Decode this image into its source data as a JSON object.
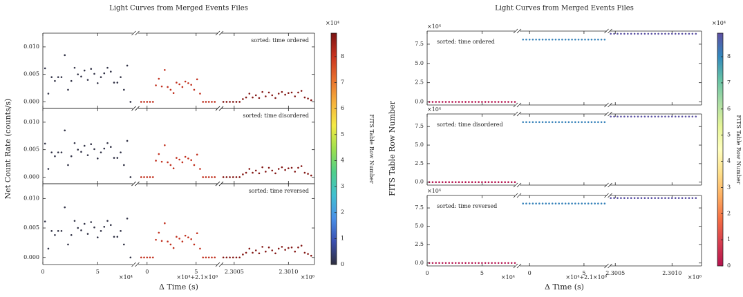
{
  "chart_data": [
    {
      "type": "scatter",
      "title": "Light Curves from Merged Events Files",
      "ylabel": "Net Count Rate (counts/s)",
      "xlabel": "Δ Time (s)",
      "panels": [
        "sorted: time ordered",
        "sorted: time disordered",
        "sorted: time reversed"
      ],
      "annotation_corner": "upper right",
      "ylim": [
        -0.0012,
        0.0125
      ],
      "yticks": [
        {
          "value": 0,
          "label": "0.000"
        },
        {
          "value": 0.005,
          "label": "0.005"
        },
        {
          "value": 0.01,
          "label": "0.010"
        }
      ],
      "segments": [
        {
          "xlim": [
            0,
            8.2
          ],
          "xticks": [
            0,
            5
          ],
          "x_offset": "×10⁴",
          "row": 0.05,
          "x": [
            0.2,
            0.5,
            0.8,
            1.1,
            1.4,
            1.7,
            2.0,
            2.3,
            2.6,
            2.9,
            3.2,
            3.5,
            3.8,
            4.1,
            4.4,
            4.7,
            5.0,
            5.3,
            5.6,
            5.9,
            6.2,
            6.5,
            6.8,
            7.1,
            7.4,
            7.7,
            8.0
          ],
          "values": [
            0.0061,
            0.0015,
            0.0045,
            0.0038,
            0.0045,
            0.0045,
            0.0085,
            0.0022,
            0.0038,
            0.0062,
            0.005,
            0.0046,
            0.0057,
            0.004,
            0.006,
            0.0051,
            0.0034,
            0.0045,
            0.0052,
            0.0062,
            0.0055,
            0.0035,
            0.0035,
            0.0045,
            0.0022,
            0.0066,
            0
          ]
        },
        {
          "xlim": [
            -0.9,
            7.2
          ],
          "xticks": [
            0,
            5
          ],
          "x_offset": "×10⁴+2.1×10⁸",
          "row": 8.1,
          "x": [
            -0.6,
            -0.3,
            0,
            0.3,
            0.6,
            0.9,
            1.2,
            1.5,
            1.8,
            2.1,
            2.4,
            2.7,
            3.0,
            3.3,
            3.6,
            3.9,
            4.2,
            4.5,
            4.8,
            5.1,
            5.4,
            5.7,
            6.0,
            6.3,
            6.6,
            6.9
          ],
          "values": [
            0,
            0,
            0,
            0,
            0,
            0.003,
            0.0042,
            0.0028,
            0.0058,
            0.0027,
            0.0022,
            0.0016,
            0.0035,
            0.0032,
            0.0027,
            0.0037,
            0.0034,
            0.0031,
            0.0022,
            0.0041,
            0.0015,
            0,
            0,
            0,
            0,
            0
          ]
        },
        {
          "xlim": [
            2.30038,
            2.30124
          ],
          "xticks": [
            2.3005,
            {
              "value": 2.301,
              "label": "2.3010"
            }
          ],
          "x_offset": "×10⁸",
          "row": 8.8,
          "x": [
            2.3004,
            2.30043,
            2.30046,
            2.30049,
            2.30052,
            2.30055,
            2.30058,
            2.30061,
            2.30064,
            2.30067,
            2.3007,
            2.30073,
            2.30076,
            2.30079,
            2.30082,
            2.30085,
            2.30088,
            2.30091,
            2.30094,
            2.30097,
            2.301,
            2.30103,
            2.30106,
            2.30109,
            2.30112,
            2.30115,
            2.30118,
            2.30121
          ],
          "values": [
            0,
            0,
            0,
            0,
            0,
            0,
            0.0005,
            0.0008,
            0.0015,
            0.0008,
            0.0012,
            0.0007,
            0.0018,
            0.001,
            0.0017,
            0.0012,
            0.0007,
            0.0015,
            0.0018,
            0.0013,
            0.0016,
            0.0017,
            0.001,
            0.0017,
            0.002,
            0.0008,
            0.0006,
            0.0003
          ]
        }
      ],
      "colorbar": {
        "label": "FITS Table Row Number",
        "offset": "×10⁴",
        "lim": [
          0,
          8.9
        ],
        "ticks": [
          0,
          1,
          2,
          3,
          4,
          5,
          6,
          7,
          8
        ],
        "colormap": [
          "#2f2f3f",
          "#3a4fb0",
          "#4a90e8",
          "#41c0d0",
          "#4fcf8a",
          "#9ee04d",
          "#f4ea45",
          "#f6b13b",
          "#e8702d",
          "#c9331f",
          "#7a1212"
        ]
      }
    },
    {
      "type": "scatter",
      "title": "Light Curves from Merged Events Files",
      "ylabel": "FITS Table Row Number",
      "xlabel": "Δ Time (s)",
      "panels": [
        "sorted: time ordered",
        "sorted: time disordered",
        "sorted: time reversed"
      ],
      "annotation_corner": "upper left",
      "ylim": [
        -0.4,
        9.2
      ],
      "y_offset": "×10⁴",
      "yticks": [
        {
          "value": 0,
          "label": "0.0"
        },
        {
          "value": 2.5,
          "label": "2.5"
        },
        {
          "value": 5,
          "label": "5.0"
        },
        {
          "value": 7.5,
          "label": "7.5"
        }
      ],
      "segments": [
        {
          "xlim": [
            0,
            8.0
          ],
          "xticks": [
            0,
            5
          ],
          "x_offset": "×10⁴",
          "x": [
            0.2,
            0.5,
            0.8,
            1.1,
            1.4,
            1.7,
            2.0,
            2.3,
            2.6,
            2.9,
            3.2,
            3.5,
            3.8,
            4.1,
            4.4,
            4.7,
            5.0,
            5.3,
            5.6,
            5.9,
            6.2,
            6.5,
            6.8,
            7.1,
            7.4,
            7.7,
            8.0
          ],
          "values": [
            0,
            0,
            0,
            0,
            0,
            0,
            0,
            0,
            0,
            0,
            0,
            0,
            0,
            0,
            0,
            0,
            0,
            0,
            0,
            0,
            0,
            0,
            0,
            0,
            0,
            0,
            0
          ]
        },
        {
          "xlim": [
            -0.9,
            7.1
          ],
          "xticks": [
            0,
            5
          ],
          "x_offset": "×10⁴+2.1×10⁸",
          "x": [
            -0.6,
            -0.3,
            0,
            0.3,
            0.6,
            0.9,
            1.2,
            1.5,
            1.8,
            2.1,
            2.4,
            2.7,
            3.0,
            3.3,
            3.6,
            3.9,
            4.2,
            4.5,
            4.8,
            5.1,
            5.4,
            5.7,
            6.0,
            6.3,
            6.6,
            6.9
          ],
          "values": [
            8.1,
            8.1,
            8.1,
            8.1,
            8.1,
            8.1,
            8.1,
            8.1,
            8.1,
            8.1,
            8.1,
            8.1,
            8.1,
            8.1,
            8.1,
            8.1,
            8.1,
            8.1,
            8.1,
            8.1,
            8.1,
            8.1,
            8.1,
            8.1,
            8.1,
            8.1
          ]
        },
        {
          "xlim": [
            2.30045,
            2.30126
          ],
          "xticks": [
            2.3005,
            {
              "value": 2.301,
              "label": "2.3010"
            }
          ],
          "x_offset": "×10⁸",
          "x": [
            2.30046,
            2.30049,
            2.30052,
            2.30055,
            2.30058,
            2.30061,
            2.30064,
            2.30067,
            2.3007,
            2.30073,
            2.30076,
            2.30079,
            2.30082,
            2.30085,
            2.30088,
            2.30091,
            2.30094,
            2.30097,
            2.301,
            2.30103,
            2.30106,
            2.30109,
            2.30112,
            2.30115,
            2.30118,
            2.30121
          ],
          "values": [
            8.85,
            8.85,
            8.85,
            8.85,
            8.85,
            8.85,
            8.85,
            8.85,
            8.85,
            8.85,
            8.85,
            8.85,
            8.85,
            8.85,
            8.85,
            8.85,
            8.85,
            8.85,
            8.85,
            8.85,
            8.85,
            8.85,
            8.85,
            8.85,
            8.85,
            8.85
          ]
        }
      ],
      "colorbar": {
        "label": "FITS Table Row Number",
        "offset": "×10⁴",
        "lim": [
          0,
          8.9
        ],
        "ticks": [
          0,
          1,
          2,
          3,
          4,
          5,
          6,
          7,
          8
        ],
        "colormap": [
          "#b5124e",
          "#d53e4f",
          "#f46d43",
          "#fdae61",
          "#fee08b",
          "#ffffbf",
          "#e6f598",
          "#abdda4",
          "#66c2a5",
          "#3288bd",
          "#5e4fa2"
        ]
      }
    }
  ]
}
